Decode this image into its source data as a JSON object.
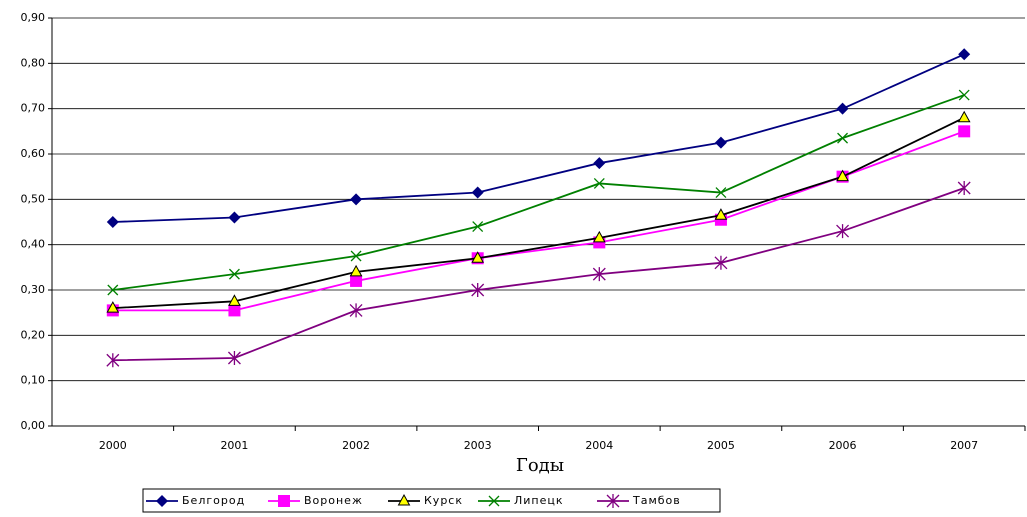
{
  "chart_data": {
    "type": "line",
    "x_label": "Годы",
    "categories": [
      "2000",
      "2001",
      "2002",
      "2003",
      "2004",
      "2005",
      "2006",
      "2007"
    ],
    "ylim": [
      0,
      0.9
    ],
    "yticks": [
      {
        "value": 0,
        "label": "0,00"
      },
      {
        "value": 0.1,
        "label": "0,10"
      },
      {
        "value": 0.2,
        "label": "0,20"
      },
      {
        "value": 0.3,
        "label": "0,30"
      },
      {
        "value": 0.4,
        "label": "0,40"
      },
      {
        "value": 0.5,
        "label": "0,50"
      },
      {
        "value": 0.6,
        "label": "0,60"
      },
      {
        "value": 0.7,
        "label": "0,70"
      },
      {
        "value": 0.8,
        "label": "0,80"
      },
      {
        "value": 0.9,
        "label": "0,90"
      }
    ],
    "grid": true,
    "legend": "bottom",
    "series": [
      {
        "name": "Белгород",
        "color": "#000080",
        "marker": "diamond",
        "values": [
          0.45,
          0.46,
          0.5,
          0.515,
          0.58,
          0.625,
          0.7,
          0.82
        ]
      },
      {
        "name": "Воронеж",
        "color": "#ff00ff",
        "marker": "square",
        "values": [
          0.255,
          0.255,
          0.32,
          0.37,
          0.405,
          0.455,
          0.55,
          0.65
        ]
      },
      {
        "name": "Курск",
        "color": "#000000",
        "marker": "triangle",
        "values": [
          0.26,
          0.275,
          0.34,
          0.37,
          0.415,
          0.465,
          0.55,
          0.68
        ]
      },
      {
        "name": "Липецк",
        "color": "#008000",
        "marker": "x",
        "values": [
          0.3,
          0.335,
          0.375,
          0.44,
          0.535,
          0.515,
          0.635,
          0.73
        ]
      },
      {
        "name": "Тамбов",
        "color": "#800080",
        "marker": "star",
        "values": [
          0.145,
          0.15,
          0.255,
          0.3,
          0.335,
          0.36,
          0.43,
          0.525
        ]
      }
    ]
  }
}
